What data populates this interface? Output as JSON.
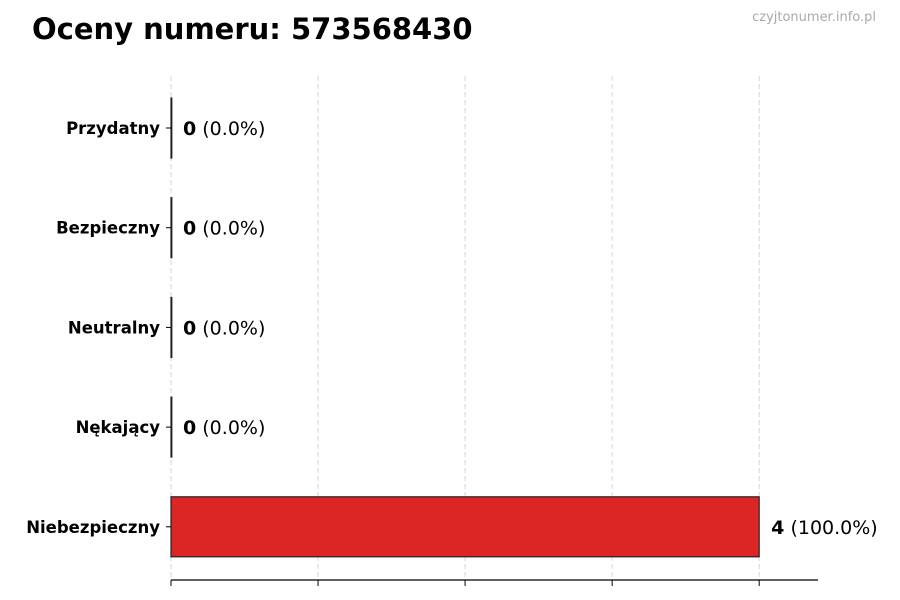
{
  "title": "Oceny numeru: 573568430",
  "watermark": "czyjtonumer.info.pl",
  "chart_data": {
    "type": "bar",
    "orientation": "horizontal",
    "title": "Oceny numeru: 573568430",
    "categories": [
      "Przydatny",
      "Bezpieczny",
      "Neutralny",
      "Nękający",
      "Niebezpieczny"
    ],
    "values": [
      0,
      0,
      0,
      0,
      4
    ],
    "percent_labels": [
      "(0.0%)",
      "(0.0%)",
      "(0.0%)",
      "(0.0%)",
      "(100.0%)"
    ],
    "bar_color": "#dc2626",
    "xlim": [
      0,
      4.4
    ],
    "xticks": [
      0,
      1,
      2,
      3,
      4
    ],
    "x_tick_labels_shown": false,
    "grid": "vertical dashed",
    "xlabel": "",
    "ylabel": ""
  }
}
